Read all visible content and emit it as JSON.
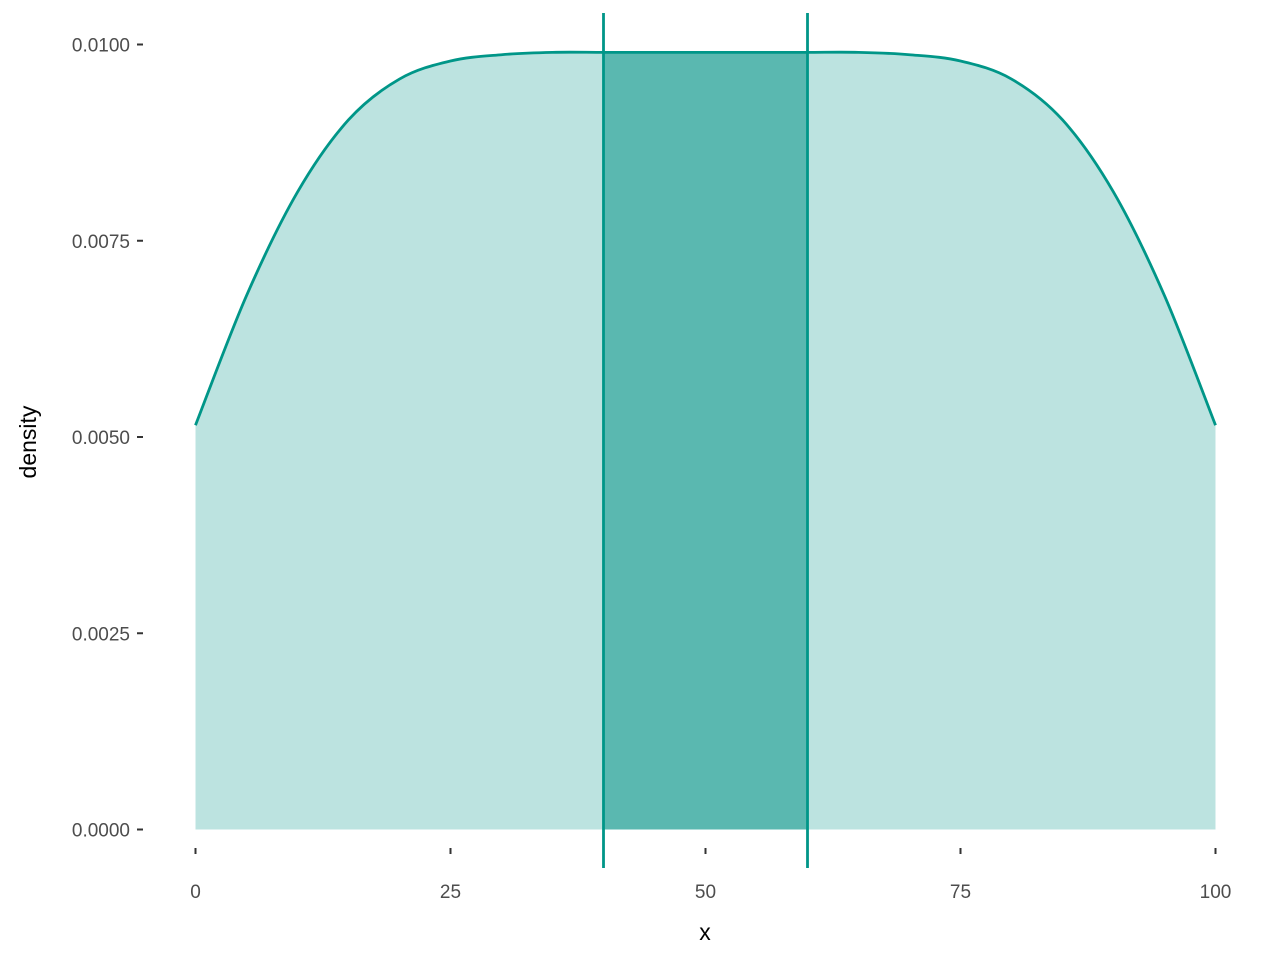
{
  "chart_data": {
    "type": "area",
    "title": "",
    "xlabel": "x",
    "ylabel": "density",
    "xlim": [
      0,
      100
    ],
    "ylim": [
      0,
      0.0101
    ],
    "x_ticks": [
      0,
      25,
      50,
      75,
      100
    ],
    "x_tick_labels": [
      "0",
      "25",
      "50",
      "75",
      "100"
    ],
    "y_ticks": [
      0,
      0.0025,
      0.005,
      0.0075,
      0.01
    ],
    "y_tick_labels": [
      "0.0000",
      "0.0025",
      "0.0050",
      "0.0075",
      "0.0100"
    ],
    "grid": false,
    "legend": "none",
    "series": [
      {
        "x": [
          0,
          5,
          10,
          15,
          20,
          25,
          30,
          35,
          40,
          45,
          50,
          55,
          60,
          65,
          70,
          75,
          80,
          85,
          90,
          95,
          100
        ],
        "y": [
          0.00515,
          0.0068,
          0.00812,
          0.00904,
          0.00956,
          0.00979,
          0.00987,
          0.0099,
          0.0099,
          0.0099,
          0.0099,
          0.0099,
          0.0099,
          0.0099,
          0.00987,
          0.00979,
          0.00956,
          0.00904,
          0.00812,
          0.0068,
          0.00515
        ]
      }
    ],
    "highlight_interval": [
      40,
      60
    ],
    "vlines": [
      40,
      60
    ],
    "colors": {
      "line": "#009688",
      "fill_light": "#bce3e0",
      "fill_dark": "#5ab8b0",
      "tick_text": "#4d4d4d",
      "tick_mark": "#333333",
      "title_text": "#000000"
    }
  }
}
